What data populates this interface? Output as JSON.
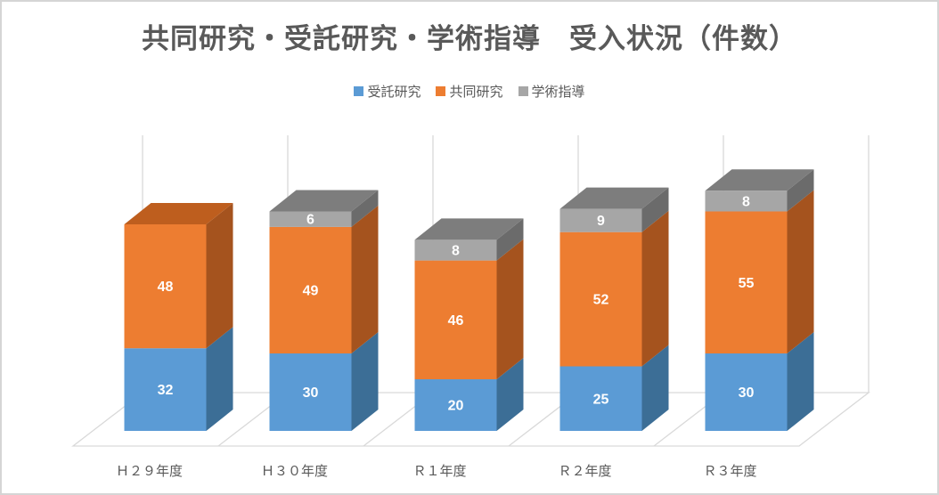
{
  "chart_data": {
    "type": "bar",
    "subtype": "3d-stacked-column",
    "title": "共同研究・受託研究・学術指導　受入状況（件数）",
    "categories": [
      "Ｈ２９年度",
      "Ｈ３０年度",
      "Ｒ１年度",
      "Ｒ２年度",
      "Ｒ３年度"
    ],
    "series": [
      {
        "name": "受託研究",
        "color": "#5B9BD5",
        "side_color": "#3C6E96",
        "top_color": "#4A83B4",
        "values": [
          32,
          30,
          20,
          25,
          30
        ]
      },
      {
        "name": "共同研究",
        "color": "#ED7D31",
        "side_color": "#A5531E",
        "top_color": "#BE5E1E",
        "values": [
          48,
          49,
          46,
          52,
          55
        ]
      },
      {
        "name": "学術指導",
        "color": "#A6A6A6",
        "side_color": "#6B6B6B",
        "top_color": "#7D7D7D",
        "values": [
          0,
          6,
          8,
          9,
          8
        ]
      }
    ],
    "value_axis": {
      "min": 0,
      "max": 100,
      "labels_visible": false,
      "gridlines_visible": false
    },
    "legend_position": "top",
    "data_labels_visible": true,
    "data_label_color": "#FFFFFF",
    "axis_text_color": "#595959",
    "title_color": "#595959",
    "wall_line_color": "#D9D9D9",
    "border_color": "#D5D5D5"
  }
}
